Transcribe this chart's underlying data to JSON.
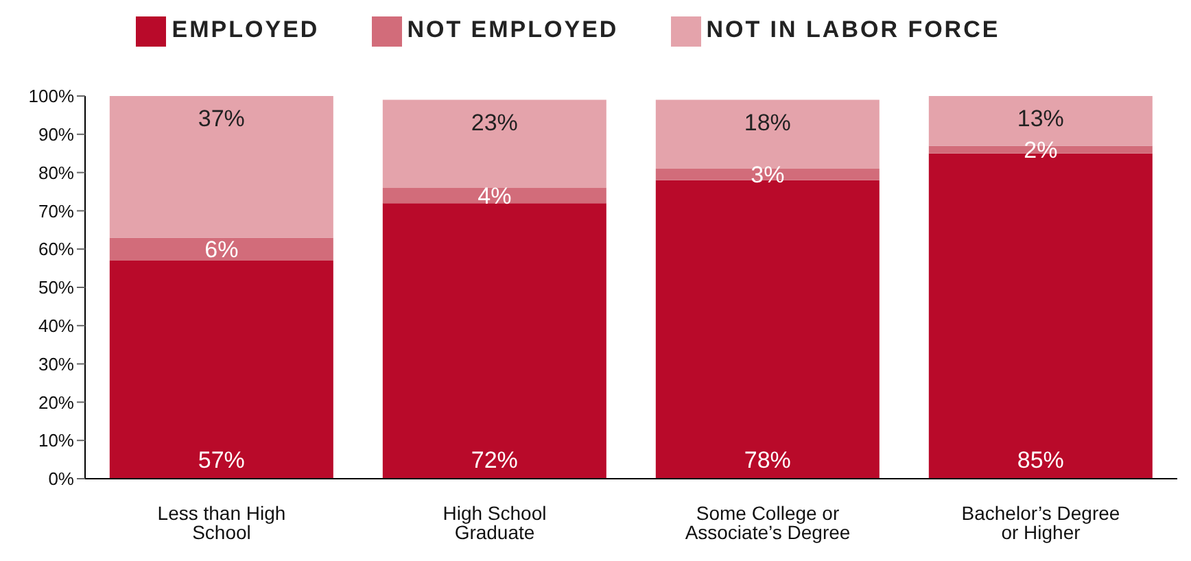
{
  "chart_data": {
    "type": "bar",
    "stacked": true,
    "categories": [
      "Less than High School",
      "High School Graduate",
      "Some College or Associate’s Degree",
      "Bachelor’s Degree or Higher"
    ],
    "series": [
      {
        "name": "EMPLOYED",
        "color": "#b90a2a",
        "values": [
          57,
          72,
          78,
          85
        ],
        "value_labels": [
          "57%",
          "72%",
          "78%",
          "85%"
        ]
      },
      {
        "name": "NOT EMPLOYED",
        "color": "#d26c7a",
        "values": [
          6,
          4,
          3,
          2
        ],
        "value_labels": [
          "6%",
          "4%",
          "3%",
          "2%"
        ]
      },
      {
        "name": "NOT IN LABOR FORCE",
        "color": "#e4a3ab",
        "values": [
          37,
          23,
          18,
          13
        ],
        "value_labels": [
          "37%",
          "23%",
          "18%",
          "13%"
        ]
      }
    ],
    "ylim": [
      0,
      100
    ],
    "yticks": [
      {
        "value": 0,
        "label": "0%"
      },
      {
        "value": 10,
        "label": "10%"
      },
      {
        "value": 20,
        "label": "20%"
      },
      {
        "value": 30,
        "label": "30%"
      },
      {
        "value": 40,
        "label": "40%"
      },
      {
        "value": 50,
        "label": "50%"
      },
      {
        "value": 60,
        "label": "60%"
      },
      {
        "value": 70,
        "label": "70%"
      },
      {
        "value": 80,
        "label": "80%"
      },
      {
        "value": 90,
        "label": "90%"
      },
      {
        "value": 100,
        "label": "100%"
      }
    ],
    "grid": false,
    "legend": "top"
  }
}
